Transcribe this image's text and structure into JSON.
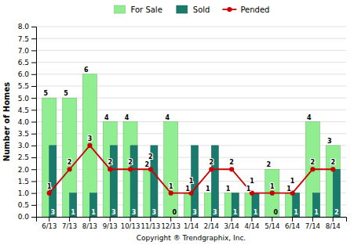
{
  "chart_data": {
    "type": "bar",
    "categories": [
      "6/13",
      "7/13",
      "8/13",
      "9/13",
      "10/13",
      "11/13",
      "12/13",
      "1/14",
      "2/14",
      "3/14",
      "4/14",
      "5/14",
      "6/14",
      "7/14",
      "8/14"
    ],
    "series": [
      {
        "name": "For Sale",
        "type": "bar",
        "color": "#90EE90",
        "values": [
          5,
          5,
          6,
          4,
          4,
          2,
          4,
          1,
          1,
          1,
          1,
          2,
          1,
          4,
          3
        ]
      },
      {
        "name": "Sold",
        "type": "bar",
        "color": "#1A7A6E",
        "values": [
          3,
          1,
          1,
          3,
          3,
          3,
          0,
          3,
          3,
          1,
          1,
          0,
          1,
          1,
          2
        ]
      },
      {
        "name": "Pended",
        "type": "line",
        "color": "#CC0000",
        "marker": "circle",
        "line_style": "solid",
        "values": [
          1,
          2,
          3,
          2,
          2,
          2,
          1,
          1,
          2,
          2,
          1,
          1,
          1,
          2,
          2
        ]
      }
    ],
    "ylabel": "Number of Homes",
    "xlabel": "Copyright ® Trendgraphix, Inc.",
    "ylim": [
      0,
      8
    ],
    "yticks": [
      {
        "value": 0,
        "label": "0.0"
      },
      0.5,
      {
        "value": 1,
        "label": "1.0"
      },
      1.5,
      {
        "value": 2,
        "label": "2.0"
      },
      2.5,
      {
        "value": 3,
        "label": "3.0"
      },
      3.5,
      {
        "value": 4,
        "label": "4.0"
      },
      4.5,
      {
        "value": 5,
        "label": "5.0"
      },
      5.5,
      {
        "value": 6,
        "label": "6.0"
      },
      6.5,
      {
        "value": 7,
        "label": "7.0"
      },
      7.5,
      {
        "value": 8,
        "label": "8.0"
      }
    ],
    "grid": true,
    "data_labels": true,
    "legend": "top"
  }
}
